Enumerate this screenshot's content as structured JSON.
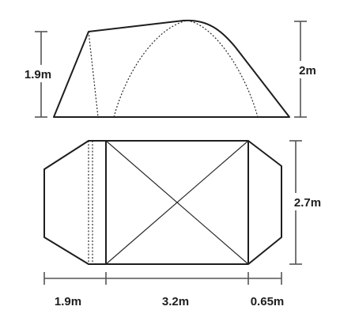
{
  "side_view": {
    "left_height_label": "1.9m",
    "right_height_label": "2m"
  },
  "floor_plan": {
    "width_label": "2.7m",
    "segment_labels": [
      "1.9m",
      "3.2m",
      "0.65m"
    ]
  },
  "colors": {
    "line": "#1e1e1e",
    "dimension": "#555555",
    "background": "#ffffff"
  }
}
